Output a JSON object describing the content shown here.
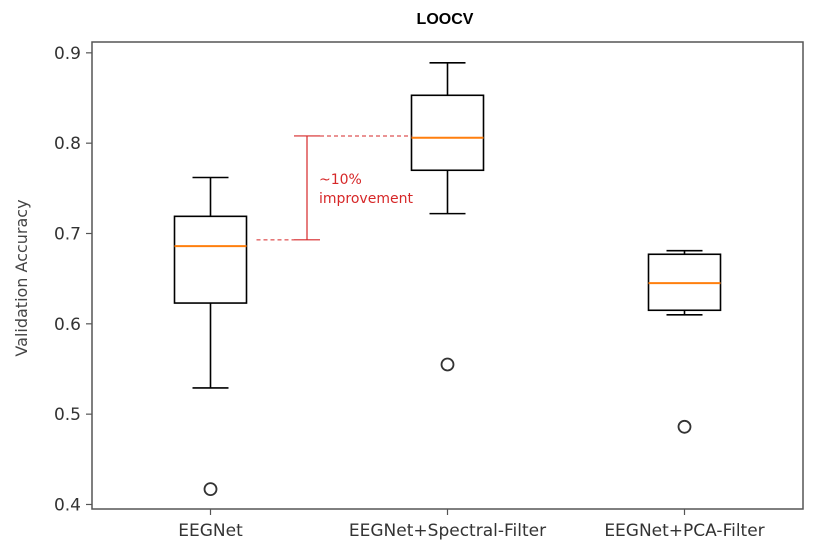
{
  "chart_data": {
    "type": "box",
    "title": "LOOCV",
    "xlabel": "",
    "ylabel": "Validation Accuracy",
    "ylim": [
      0.395,
      0.912
    ],
    "yticks": [
      0.4,
      0.5,
      0.6,
      0.7,
      0.8,
      0.9
    ],
    "yticklabels": [
      "0.4",
      "0.5",
      "0.6",
      "0.7",
      "0.8",
      "0.9"
    ],
    "grid": false,
    "categories": [
      "EEGNet",
      "EEGNet+Spectral-Filter",
      "EEGNet+PCA-Filter"
    ],
    "boxes": [
      {
        "category": "EEGNet",
        "whisker_low": 0.529,
        "q1": 0.623,
        "median": 0.686,
        "q3": 0.719,
        "whisker_high": 0.762,
        "outliers": [
          0.417
        ]
      },
      {
        "category": "EEGNet+Spectral-Filter",
        "whisker_low": 0.722,
        "q1": 0.77,
        "median": 0.806,
        "q3": 0.853,
        "whisker_high": 0.889,
        "outliers": [
          0.555
        ]
      },
      {
        "category": "EEGNet+PCA-Filter",
        "whisker_low": 0.61,
        "q1": 0.615,
        "median": 0.645,
        "q3": 0.677,
        "whisker_high": 0.681,
        "outliers": [
          0.486
        ]
      }
    ],
    "annotation": {
      "lines": [
        "~10%",
        "improvement"
      ],
      "from_value": 0.693,
      "to_value": 0.808
    },
    "colors": {
      "median": "#ff7f0e",
      "annotation": "#d62728",
      "box": "#000000",
      "axis": "#555555"
    }
  }
}
